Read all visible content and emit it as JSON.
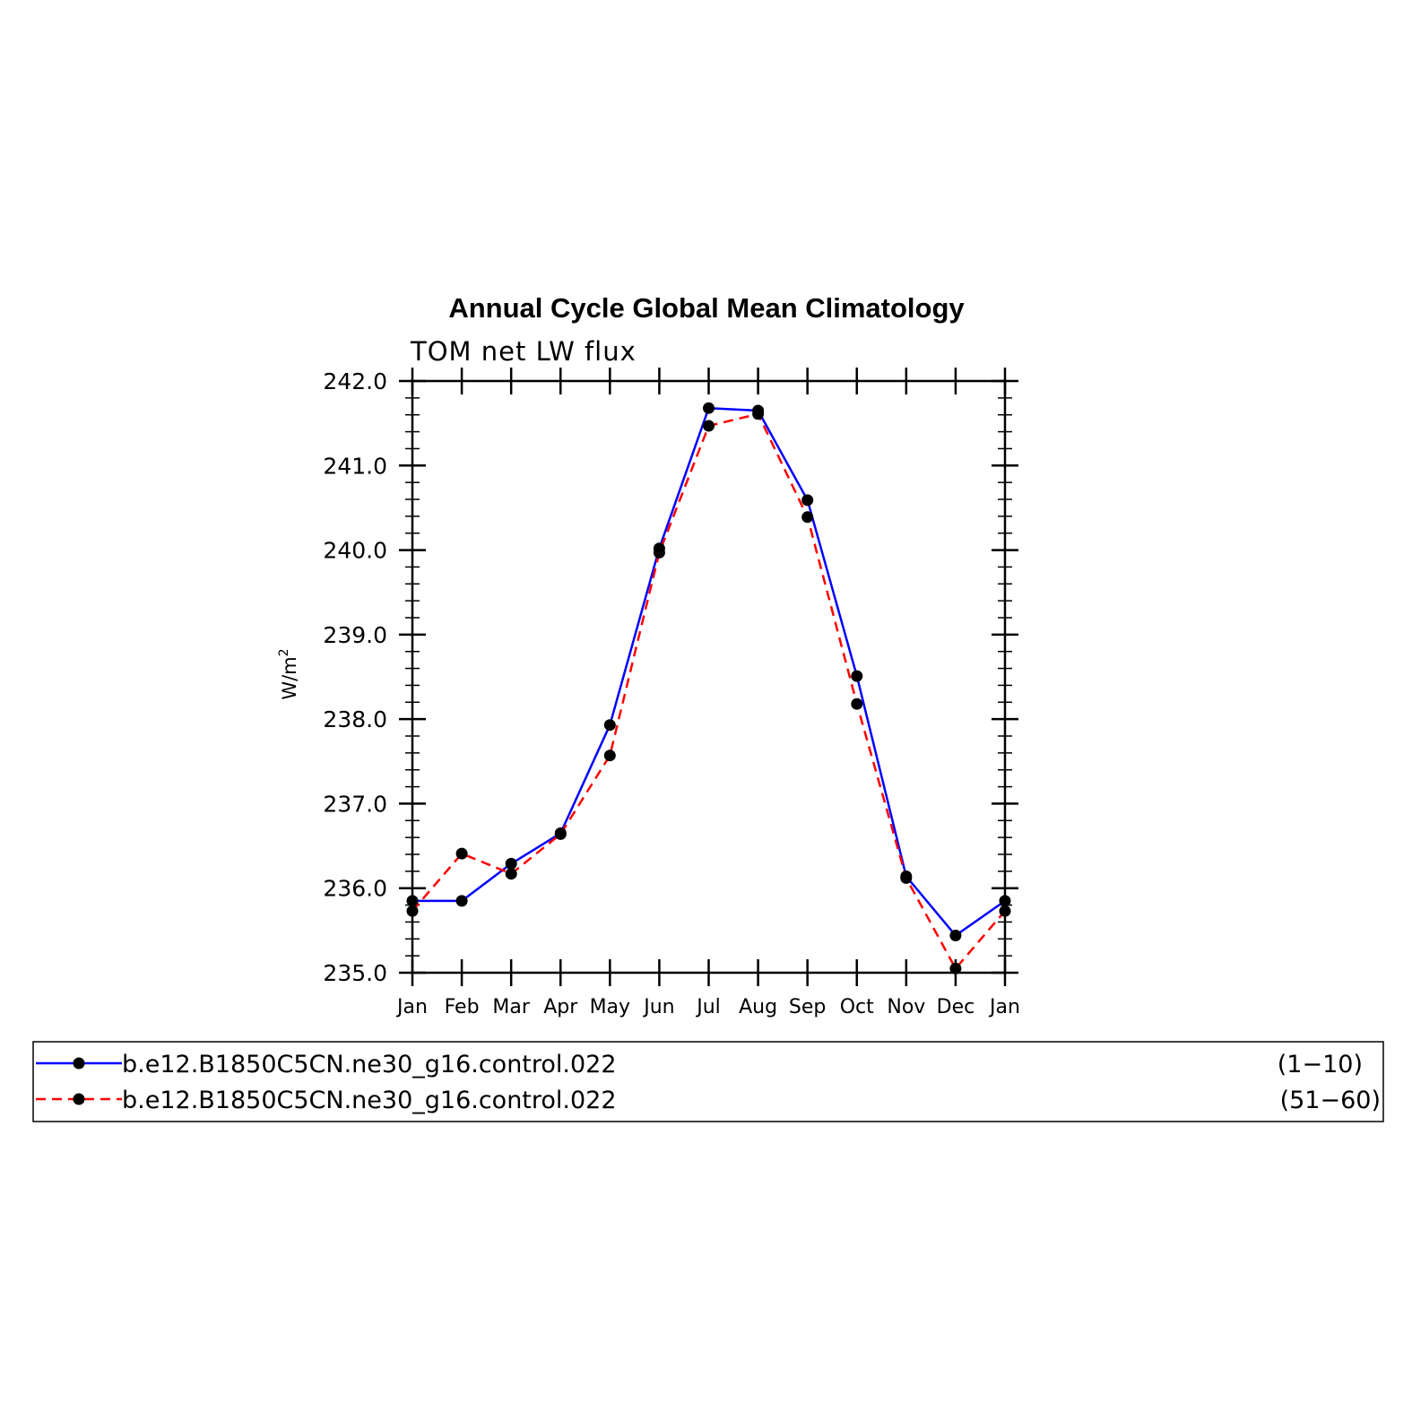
{
  "chart_data": {
    "type": "line",
    "title": "Annual Cycle Global Mean Climatology",
    "subtitle": "TOM net LW flux",
    "ylabel": "W/m",
    "ylabel_sup": "2",
    "xlabel": "",
    "categories": [
      "Jan",
      "Feb",
      "Mar",
      "Apr",
      "May",
      "Jun",
      "Jul",
      "Aug",
      "Sep",
      "Oct",
      "Nov",
      "Dec",
      "Jan"
    ],
    "ylim": [
      235.0,
      242.0
    ],
    "yticks": [
      "235.0",
      "236.0",
      "237.0",
      "238.0",
      "239.0",
      "240.0",
      "241.0",
      "242.0"
    ],
    "grid": false,
    "legend_position": "bottom",
    "series": [
      {
        "name": "b.e12.B1850C5CN.ne30_g16.control.022",
        "years": "(1−10)",
        "color": "#0000ff",
        "style": "solid",
        "values": [
          235.85,
          235.85,
          236.29,
          236.65,
          237.93,
          240.02,
          241.68,
          241.65,
          240.59,
          238.51,
          236.14,
          235.44,
          235.85
        ]
      },
      {
        "name": "b.e12.B1850C5CN.ne30_g16.control.022",
        "years": "(51−60)",
        "color": "#ff0000",
        "style": "dashed",
        "values": [
          235.73,
          236.41,
          236.17,
          236.64,
          237.57,
          239.97,
          241.47,
          241.61,
          240.39,
          238.18,
          236.12,
          235.05,
          235.73
        ]
      }
    ]
  }
}
